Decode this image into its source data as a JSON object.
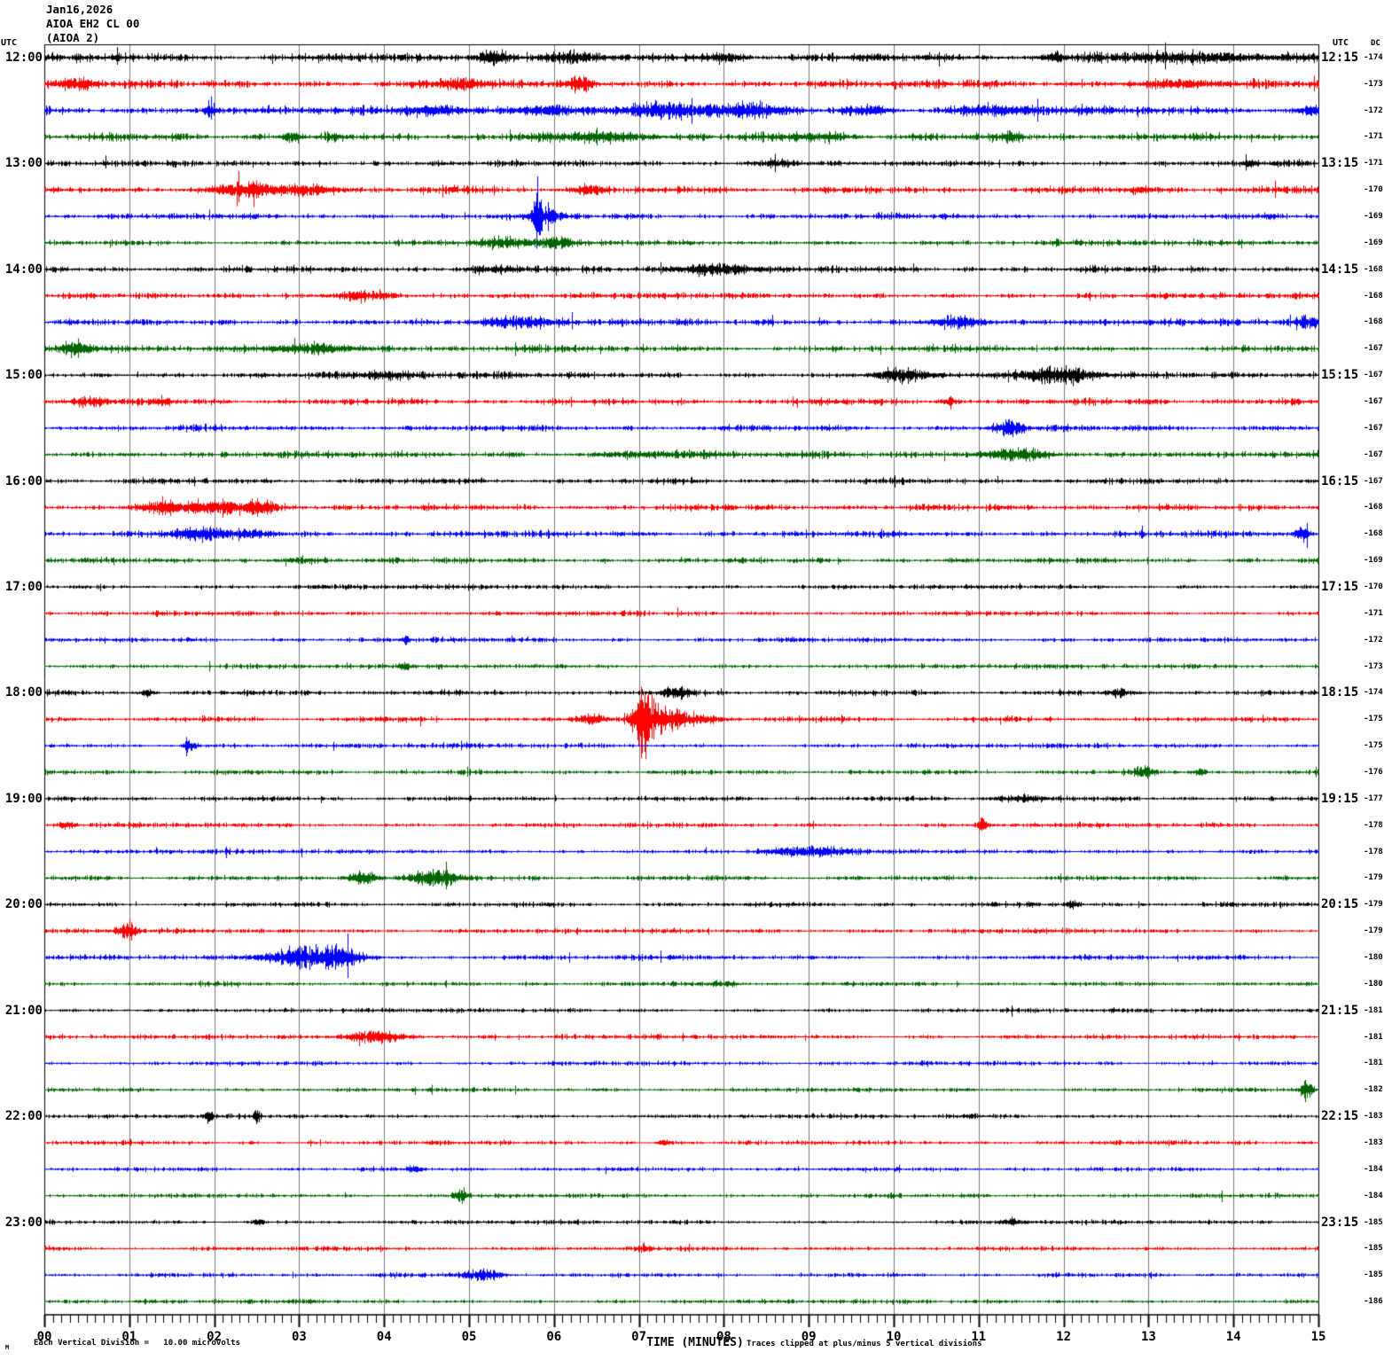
{
  "title": {
    "date": "Jan16,2026",
    "station": "AIOA EH2 CL 00",
    "station_alt": "(AIOA 2)"
  },
  "header": {
    "utc_left": "UTC",
    "utc_right": "UTC",
    "dc": "DC"
  },
  "x_axis": {
    "title": "TIME (MINUTES)",
    "ticks": [
      "00",
      "01",
      "02",
      "03",
      "04",
      "05",
      "06",
      "07",
      "08",
      "09",
      "10",
      "11",
      "12",
      "13",
      "14",
      "15"
    ],
    "minutes_range": [
      0,
      15
    ]
  },
  "footer": {
    "marker": "M",
    "scale_note": "Each Vertical Division =   10.00 microvolts",
    "clip_note": "Traces clipped at plus/minus 5 vertical divisions"
  },
  "colors": {
    "black": "#000000",
    "red": "#ff0000",
    "blue": "#0000ff",
    "green": "#006400",
    "grid": "#7a7a7a",
    "border": "#000000"
  },
  "chart_data": {
    "type": "line",
    "variant": "helicorder-seismogram",
    "minutes_per_line": 15,
    "trace_color_cycle": [
      "black",
      "red",
      "blue",
      "green"
    ],
    "clip_divisions": 5,
    "microvolts_per_division": 10,
    "rows": [
      {
        "utc": "12:00",
        "utc_right": "12:15",
        "color": "black",
        "dc": -174,
        "noise": 3.2,
        "events": [
          [
            5.3,
            8,
            0.2
          ],
          [
            6.2,
            4,
            0.3
          ],
          [
            8.0,
            3,
            0.3
          ],
          [
            11.9,
            4,
            0.12
          ],
          [
            13.8,
            3,
            1.5
          ]
        ]
      },
      {
        "color": "red",
        "dc": -173,
        "noise": 3.0,
        "events": [
          [
            0.35,
            4,
            0.2
          ],
          [
            4.85,
            4,
            0.3
          ],
          [
            6.3,
            6,
            0.12
          ],
          [
            13.3,
            3,
            0.5
          ]
        ]
      },
      {
        "color": "blue",
        "dc": -172,
        "noise": 3.2,
        "events": [
          [
            1.95,
            9,
            0.06
          ],
          [
            4.6,
            5,
            0.3
          ],
          [
            5.95,
            5,
            0.4
          ],
          [
            7.3,
            6,
            0.5
          ],
          [
            8.35,
            5,
            0.4
          ],
          [
            9.7,
            4,
            0.25
          ],
          [
            11.2,
            4,
            0.5
          ],
          [
            14.9,
            4,
            0.15
          ]
        ]
      },
      {
        "color": "green",
        "dc": -171,
        "noise": 3.0,
        "events": [
          [
            2.9,
            4,
            0.1
          ],
          [
            6.6,
            4,
            0.6
          ],
          [
            9.1,
            3,
            0.4
          ],
          [
            11.4,
            6,
            0.1
          ]
        ]
      },
      {
        "utc": "13:00",
        "utc_right": "13:15",
        "color": "black",
        "dc": -171,
        "noise": 2.2,
        "events": [
          [
            8.6,
            3,
            0.3
          ],
          [
            14.2,
            3,
            0.1
          ]
        ]
      },
      {
        "color": "red",
        "dc": -170,
        "noise": 2.6,
        "events": [
          [
            2.4,
            5,
            0.4
          ],
          [
            3.1,
            5,
            0.3
          ],
          [
            6.4,
            4,
            0.2
          ],
          [
            12.9,
            3,
            0.15
          ]
        ]
      },
      {
        "color": "blue",
        "dc": -169,
        "noise": 2.2,
        "events": [
          [
            5.8,
            26,
            0.05
          ],
          [
            5.9,
            7,
            0.18
          ]
        ]
      },
      {
        "color": "green",
        "dc": -169,
        "noise": 2.2,
        "events": [
          [
            5.35,
            5,
            0.25
          ],
          [
            6.0,
            3,
            0.3
          ]
        ]
      },
      {
        "utc": "14:00",
        "utc_right": "14:15",
        "color": "black",
        "dc": -168,
        "noise": 2.4,
        "events": [
          [
            5.3,
            3,
            0.3
          ],
          [
            7.9,
            5,
            0.5
          ]
        ]
      },
      {
        "color": "red",
        "dc": -168,
        "noise": 2.2,
        "events": [
          [
            3.75,
            5,
            0.35
          ]
        ]
      },
      {
        "color": "blue",
        "dc": -168,
        "noise": 2.6,
        "events": [
          [
            5.6,
            5,
            0.35
          ],
          [
            10.75,
            6,
            0.3
          ],
          [
            14.9,
            4,
            0.15
          ]
        ]
      },
      {
        "color": "green",
        "dc": -167,
        "noise": 2.4,
        "events": [
          [
            0.35,
            6,
            0.2
          ],
          [
            3.2,
            5,
            0.5
          ]
        ]
      },
      {
        "utc": "15:00",
        "utc_right": "15:15",
        "color": "black",
        "dc": -167,
        "noise": 2.4,
        "events": [
          [
            4.0,
            3,
            0.3
          ],
          [
            10.1,
            6,
            0.35
          ],
          [
            11.9,
            7,
            0.4
          ]
        ]
      },
      {
        "color": "red",
        "dc": -167,
        "noise": 2.4,
        "events": [
          [
            0.55,
            4,
            0.2
          ],
          [
            1.4,
            3,
            0.1
          ],
          [
            10.65,
            3,
            0.1
          ]
        ]
      },
      {
        "color": "blue",
        "dc": -167,
        "noise": 2.2,
        "events": [
          [
            11.35,
            8,
            0.18
          ]
        ]
      },
      {
        "color": "green",
        "dc": -167,
        "noise": 2.4,
        "events": [
          [
            7.2,
            3,
            0.6
          ],
          [
            11.45,
            6,
            0.4
          ]
        ]
      },
      {
        "utc": "16:00",
        "utc_right": "16:15",
        "color": "black",
        "dc": -167,
        "noise": 2.2,
        "events": []
      },
      {
        "color": "red",
        "dc": -168,
        "noise": 2.4,
        "events": [
          [
            1.35,
            5,
            0.25
          ],
          [
            2.0,
            6,
            0.35
          ],
          [
            2.55,
            5,
            0.25
          ]
        ]
      },
      {
        "color": "blue",
        "dc": -168,
        "noise": 2.4,
        "events": [
          [
            1.8,
            5,
            0.3
          ],
          [
            2.4,
            4,
            0.2
          ],
          [
            14.8,
            7,
            0.08
          ]
        ]
      },
      {
        "color": "green",
        "dc": -169,
        "noise": 2.0,
        "events": [
          [
            3.0,
            2,
            0.3
          ]
        ]
      },
      {
        "utc": "17:00",
        "utc_right": "17:15",
        "color": "black",
        "dc": -170,
        "noise": 1.8,
        "events": []
      },
      {
        "color": "red",
        "dc": -171,
        "noise": 1.8,
        "events": []
      },
      {
        "color": "blue",
        "dc": -172,
        "noise": 1.8,
        "events": [
          [
            4.25,
            3,
            0.06
          ]
        ]
      },
      {
        "color": "green",
        "dc": -173,
        "noise": 1.8,
        "events": [
          [
            4.25,
            3,
            0.06
          ]
        ]
      },
      {
        "utc": "18:00",
        "utc_right": "18:15",
        "color": "black",
        "dc": -174,
        "noise": 2.0,
        "events": [
          [
            1.2,
            4,
            0.08
          ],
          [
            7.45,
            6,
            0.15
          ],
          [
            12.65,
            5,
            0.08
          ]
        ]
      },
      {
        "color": "red",
        "dc": -175,
        "noise": 2.0,
        "events": [
          [
            6.45,
            5,
            0.15
          ],
          [
            7.05,
            34,
            0.12
          ],
          [
            7.3,
            10,
            0.2
          ],
          [
            7.7,
            4,
            0.3
          ]
        ]
      },
      {
        "color": "blue",
        "dc": -175,
        "noise": 1.8,
        "events": [
          [
            1.7,
            6,
            0.07
          ]
        ]
      },
      {
        "color": "green",
        "dc": -176,
        "noise": 1.8,
        "events": [
          [
            12.95,
            5,
            0.1
          ],
          [
            13.6,
            3,
            0.08
          ]
        ]
      },
      {
        "utc": "19:00",
        "utc_right": "19:15",
        "color": "black",
        "dc": -177,
        "noise": 1.8,
        "events": [
          [
            11.5,
            3,
            0.3
          ]
        ]
      },
      {
        "color": "red",
        "dc": -178,
        "noise": 1.8,
        "events": [
          [
            0.26,
            4,
            0.1
          ],
          [
            11.05,
            8,
            0.05
          ]
        ]
      },
      {
        "color": "blue",
        "dc": -178,
        "noise": 1.8,
        "events": [
          [
            9.0,
            5,
            0.4
          ]
        ]
      },
      {
        "color": "green",
        "dc": -179,
        "noise": 1.8,
        "events": [
          [
            3.75,
            6,
            0.18
          ],
          [
            4.6,
            8,
            0.3
          ]
        ]
      },
      {
        "utc": "20:00",
        "utc_right": "20:15",
        "color": "black",
        "dc": -179,
        "noise": 1.8,
        "events": [
          [
            12.1,
            4,
            0.08
          ]
        ]
      },
      {
        "color": "red",
        "dc": -179,
        "noise": 1.8,
        "events": [
          [
            0.97,
            9,
            0.1
          ]
        ]
      },
      {
        "color": "blue",
        "dc": -180,
        "noise": 1.8,
        "events": [
          [
            3.1,
            11,
            0.5
          ],
          [
            3.5,
            6,
            0.2
          ]
        ]
      },
      {
        "color": "green",
        "dc": -180,
        "noise": 1.6,
        "events": [
          [
            8.0,
            3,
            0.15
          ]
        ]
      },
      {
        "utc": "21:00",
        "utc_right": "21:15",
        "color": "black",
        "dc": -181,
        "noise": 1.6,
        "events": []
      },
      {
        "color": "red",
        "dc": -181,
        "noise": 1.8,
        "events": [
          [
            3.9,
            6,
            0.35
          ]
        ]
      },
      {
        "color": "blue",
        "dc": -181,
        "noise": 1.6,
        "events": []
      },
      {
        "color": "green",
        "dc": -182,
        "noise": 1.6,
        "events": [
          [
            14.85,
            10,
            0.07
          ]
        ]
      },
      {
        "utc": "22:00",
        "utc_right": "22:15",
        "color": "black",
        "dc": -183,
        "noise": 1.6,
        "events": [
          [
            1.93,
            6,
            0.05
          ],
          [
            2.5,
            6,
            0.05
          ]
        ]
      },
      {
        "color": "red",
        "dc": -183,
        "noise": 1.6,
        "events": [
          [
            7.3,
            3,
            0.08
          ]
        ]
      },
      {
        "color": "blue",
        "dc": -184,
        "noise": 1.6,
        "events": [
          [
            4.35,
            3,
            0.08
          ]
        ]
      },
      {
        "color": "green",
        "dc": -184,
        "noise": 1.6,
        "events": [
          [
            4.9,
            8,
            0.08
          ]
        ]
      },
      {
        "utc": "23:00",
        "utc_right": "23:15",
        "color": "black",
        "dc": -185,
        "noise": 1.6,
        "events": [
          [
            2.5,
            3,
            0.08
          ],
          [
            11.4,
            3,
            0.15
          ]
        ]
      },
      {
        "color": "red",
        "dc": -185,
        "noise": 1.6,
        "events": [
          [
            7.05,
            3,
            0.08
          ]
        ]
      },
      {
        "color": "blue",
        "dc": -185,
        "noise": 1.6,
        "events": [
          [
            5.15,
            5,
            0.25
          ]
        ]
      },
      {
        "color": "green",
        "dc": -186,
        "noise": 1.6,
        "events": []
      }
    ]
  }
}
